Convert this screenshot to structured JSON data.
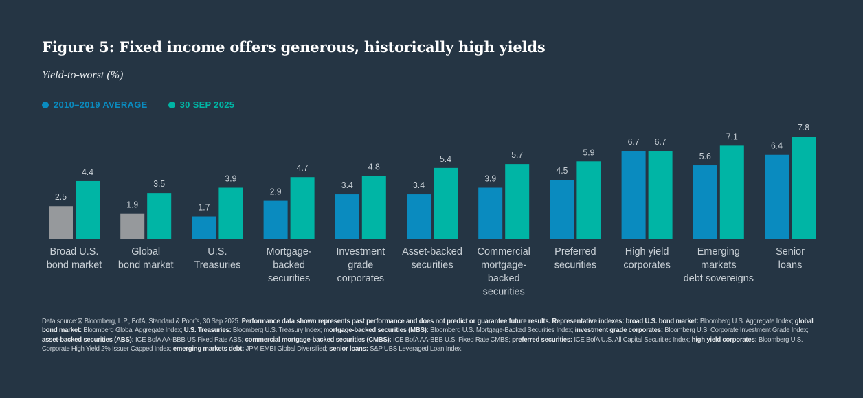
{
  "title": "Figure 5: Fixed income offers generous, historically high yields",
  "subtitle": "Yield-to-worst (%)",
  "legend": [
    {
      "label": "2010–2019 AVERAGE",
      "color": "#0a8bbf"
    },
    {
      "label": "30 SEP 2025",
      "color": "#00b5a5"
    }
  ],
  "colors": {
    "background": "#253544",
    "average": "#0a8bbf",
    "average_gray": "#96999c",
    "current": "#00b5a5",
    "axis": "#8a96a0",
    "label": "#c9d0d6"
  },
  "chart_data": {
    "type": "bar",
    "title": "Figure 5: Fixed income offers generous, historically high yields",
    "ylabel": "Yield-to-worst (%)",
    "xlabel": "",
    "ylim": [
      0,
      7.8
    ],
    "grid": false,
    "legend_position": "top-left",
    "categories": [
      [
        "Broad U.S.",
        "bond market"
      ],
      [
        "Global",
        "bond market"
      ],
      [
        "U.S.",
        "Treasuries"
      ],
      [
        "Mortgage-",
        "backed",
        "securities"
      ],
      [
        "Investment",
        "grade",
        "corporates"
      ],
      [
        "Asset-backed",
        "securities"
      ],
      [
        "Commercial",
        "mortgage-",
        "backed",
        "securities"
      ],
      [
        "Preferred",
        "securities"
      ],
      [
        "High yield",
        "corporates"
      ],
      [
        "Emerging",
        "markets",
        "debt sovereigns"
      ],
      [
        "Senior",
        "loans"
      ]
    ],
    "series": [
      {
        "name": "2010–2019 AVERAGE",
        "values": [
          2.5,
          1.9,
          1.7,
          2.9,
          3.4,
          3.4,
          3.9,
          4.5,
          6.7,
          5.6,
          6.4
        ],
        "gray_indices": [
          0,
          1
        ]
      },
      {
        "name": "30 SEP 2025",
        "values": [
          4.4,
          3.5,
          3.9,
          4.7,
          4.8,
          5.4,
          5.7,
          5.9,
          6.7,
          7.1,
          7.8
        ]
      }
    ]
  },
  "footnote": [
    {
      "t": "Data source:⊠ Bloomberg, L.P., BofA, Standard & Poor’s, 30 Sep 2025. ",
      "b": false
    },
    {
      "t": "Performance data shown represents past performance and does not predict or guarantee future results. Representative indexes: broad U.S. bond market:",
      "b": true
    },
    {
      "t": " Bloomberg U.S. Aggregate Index; ",
      "b": false
    },
    {
      "t": "global bond market:",
      "b": true
    },
    {
      "t": " Bloomberg Global Aggregate Index; ",
      "b": false
    },
    {
      "t": "U.S. Treasuries:",
      "b": true
    },
    {
      "t": " Bloomberg U.S. Treasury Index; ",
      "b": false
    },
    {
      "t": "mortgage-backed securities (MBS):",
      "b": true
    },
    {
      "t": " Bloomberg U.S. Mortgage-Backed Securities Index; ",
      "b": false
    },
    {
      "t": "investment grade corporates:",
      "b": true
    },
    {
      "t": " Bloomberg U.S. Corporate Investment Grade Index; ",
      "b": false
    },
    {
      "t": "asset-backed securities (ABS):",
      "b": true
    },
    {
      "t": " ICE BofA AA-BBB US Fixed Rate ABS; ",
      "b": false
    },
    {
      "t": "commercial mortgage-backed securities (CMBS):",
      "b": true
    },
    {
      "t": " ICE BofA AA-BBB U.S. Fixed Rate CMBS; ",
      "b": false
    },
    {
      "t": "preferred securities:",
      "b": true
    },
    {
      "t": " ICE BofA U.S. All Capital Securities Index; ",
      "b": false
    },
    {
      "t": "high yield corporates:",
      "b": true
    },
    {
      "t": " Bloomberg U.S. Corporate High Yield 2% Issuer Capped Index; ",
      "b": false
    },
    {
      "t": "emerging markets debt:",
      "b": true
    },
    {
      "t": " JPM EMBI Global Diversified; ",
      "b": false
    },
    {
      "t": "senior loans:",
      "b": true
    },
    {
      "t": " S&P UBS Leveraged Loan Index.",
      "b": false
    }
  ]
}
